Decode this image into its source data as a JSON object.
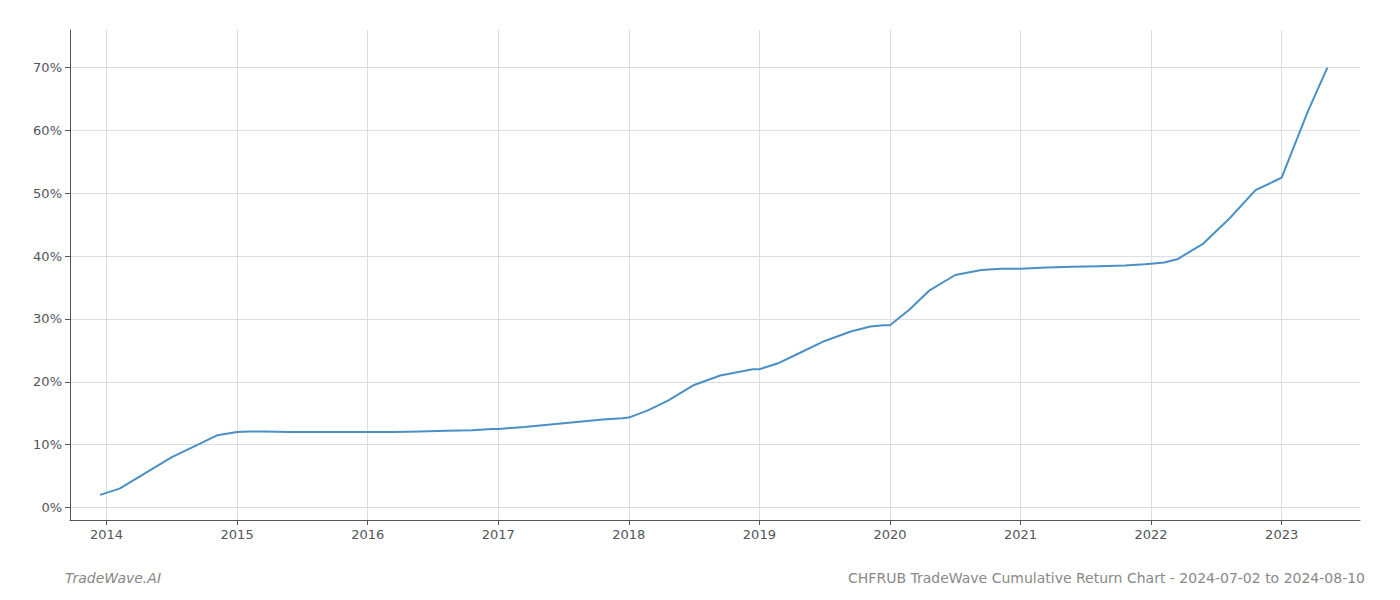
{
  "chart_data": {
    "type": "line",
    "title": "CHFRUB TradeWave Cumulative Return Chart - 2024-07-02 to 2024-08-10",
    "annotations": [
      "TradeWave.AI"
    ],
    "x": [
      2013.95,
      2014.1,
      2014.3,
      2014.5,
      2014.7,
      2014.85,
      2015.0,
      2015.1,
      2015.2,
      2015.4,
      2015.6,
      2015.8,
      2015.95,
      2016.0,
      2016.2,
      2016.4,
      2016.6,
      2016.8,
      2016.95,
      2017.0,
      2017.2,
      2017.4,
      2017.6,
      2017.8,
      2017.95,
      2018.0,
      2018.15,
      2018.3,
      2018.5,
      2018.7,
      2018.9,
      2018.95,
      2019.0,
      2019.15,
      2019.3,
      2019.5,
      2019.7,
      2019.85,
      2019.95,
      2020.0,
      2020.15,
      2020.3,
      2020.5,
      2020.7,
      2020.85,
      2020.95,
      2021.0,
      2021.2,
      2021.4,
      2021.6,
      2021.8,
      2021.95,
      2022.0,
      2022.1,
      2022.2,
      2022.4,
      2022.6,
      2022.8,
      2022.95,
      2023.0,
      2023.2,
      2023.35
    ],
    "values": [
      2.0,
      3.0,
      5.5,
      8.0,
      10.0,
      11.5,
      12.0,
      12.1,
      12.1,
      12.0,
      12.0,
      12.0,
      12.0,
      12.0,
      12.0,
      12.1,
      12.2,
      12.3,
      12.5,
      12.5,
      12.8,
      13.2,
      13.6,
      14.0,
      14.2,
      14.3,
      15.5,
      17.0,
      19.5,
      21.0,
      21.8,
      22.0,
      22.0,
      23.0,
      24.5,
      26.5,
      28.0,
      28.8,
      29.0,
      29.0,
      31.5,
      34.5,
      37.0,
      37.8,
      38.0,
      38.0,
      38.0,
      38.2,
      38.3,
      38.4,
      38.5,
      38.7,
      38.8,
      39.0,
      39.5,
      42.0,
      46.0,
      50.5,
      52.0,
      52.5,
      63.0,
      70.0
    ],
    "color": "#4a90c4",
    "xlim": [
      2013.72,
      2023.6
    ],
    "xticks": [
      2014,
      2015,
      2016,
      2017,
      2018,
      2019,
      2020,
      2021,
      2022,
      2023
    ],
    "ylim": [
      -2,
      76
    ],
    "yticks": [
      {
        "value": 0,
        "label": "0%"
      },
      {
        "value": 10,
        "label": "10%"
      },
      {
        "value": 20,
        "label": "20%"
      },
      {
        "value": 30,
        "label": "30%"
      },
      {
        "value": 40,
        "label": "40%"
      },
      {
        "value": 50,
        "label": "50%"
      },
      {
        "value": 60,
        "label": "60%"
      },
      {
        "value": 70,
        "label": "70%"
      }
    ],
    "grid": true
  }
}
